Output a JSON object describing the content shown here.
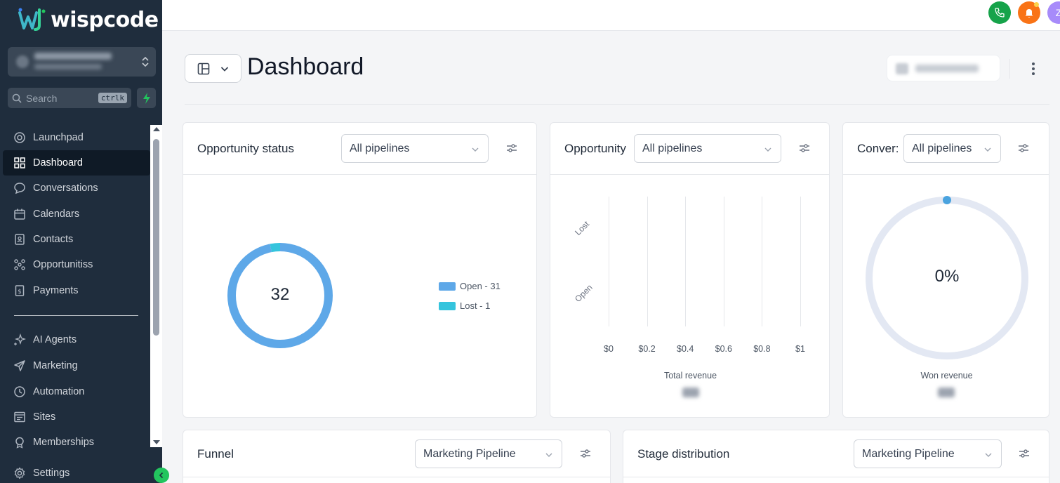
{
  "app": {
    "logo_text": "wispcode"
  },
  "sidebar": {
    "search_placeholder": "Search",
    "search_shortcut": "ctrlk",
    "nav_items": [
      {
        "label": "Launchpad",
        "icon": "launchpad-icon",
        "active": false
      },
      {
        "label": "Dashboard",
        "icon": "dashboard-icon",
        "active": true
      },
      {
        "label": "Conversations",
        "icon": "chat-icon",
        "active": false
      },
      {
        "label": "Calendars",
        "icon": "calendar-icon",
        "active": false
      },
      {
        "label": "Contacts",
        "icon": "contacts-icon",
        "active": false
      },
      {
        "label": "Opportunitiss",
        "icon": "opportunities-icon",
        "active": false
      },
      {
        "label": "Payments",
        "icon": "payments-icon",
        "active": false
      },
      {
        "label": "AI Agents",
        "icon": "sparkle-icon",
        "active": false
      },
      {
        "label": "Marketing",
        "icon": "send-icon",
        "active": false
      },
      {
        "label": "Automation",
        "icon": "automation-icon",
        "active": false
      },
      {
        "label": "Sites",
        "icon": "sites-icon",
        "active": false
      },
      {
        "label": "Memberships",
        "icon": "memberships-icon",
        "active": false
      },
      {
        "label": "Settings",
        "icon": "gear-icon",
        "active": false
      }
    ]
  },
  "topbar": {
    "avatar_initial": "Z"
  },
  "header": {
    "title": "Dashboard"
  },
  "cards": {
    "opportunity_status": {
      "title": "Opportunity status",
      "filter": "All pipelines",
      "total": "32",
      "legend": [
        {
          "label": "Open - 31",
          "color": "#5ea8e8"
        },
        {
          "label": "Lost - 1",
          "color": "#35c4dd"
        }
      ]
    },
    "opportunity_value": {
      "title": "Opportunity",
      "filter": "All pipelines",
      "caption": "Total revenue"
    },
    "conversion": {
      "title": "Conver:",
      "filter": "All pipelines",
      "center_value": "0%",
      "caption": "Won revenue"
    },
    "funnel": {
      "title": "Funnel",
      "filter": "Marketing Pipeline"
    },
    "stage_distribution": {
      "title": "Stage distribution",
      "filter": "Marketing Pipeline"
    }
  },
  "chart_data": [
    {
      "type": "pie",
      "categories": [
        "Open",
        "Lost"
      ],
      "values": [
        31,
        1
      ],
      "colors": [
        "#5ea8e8",
        "#35c4dd"
      ],
      "legend_position": "right"
    },
    {
      "type": "bar",
      "orientation": "horizontal",
      "categories": [
        "Lost",
        "Open"
      ],
      "values": [
        0,
        0
      ],
      "xlabel": "Total revenue",
      "x_ticks": [
        "$0",
        "$0.2",
        "$0.4",
        "$0.6",
        "$0.8",
        "$1"
      ],
      "xlim": [
        0,
        1
      ],
      "grid": true
    }
  ]
}
